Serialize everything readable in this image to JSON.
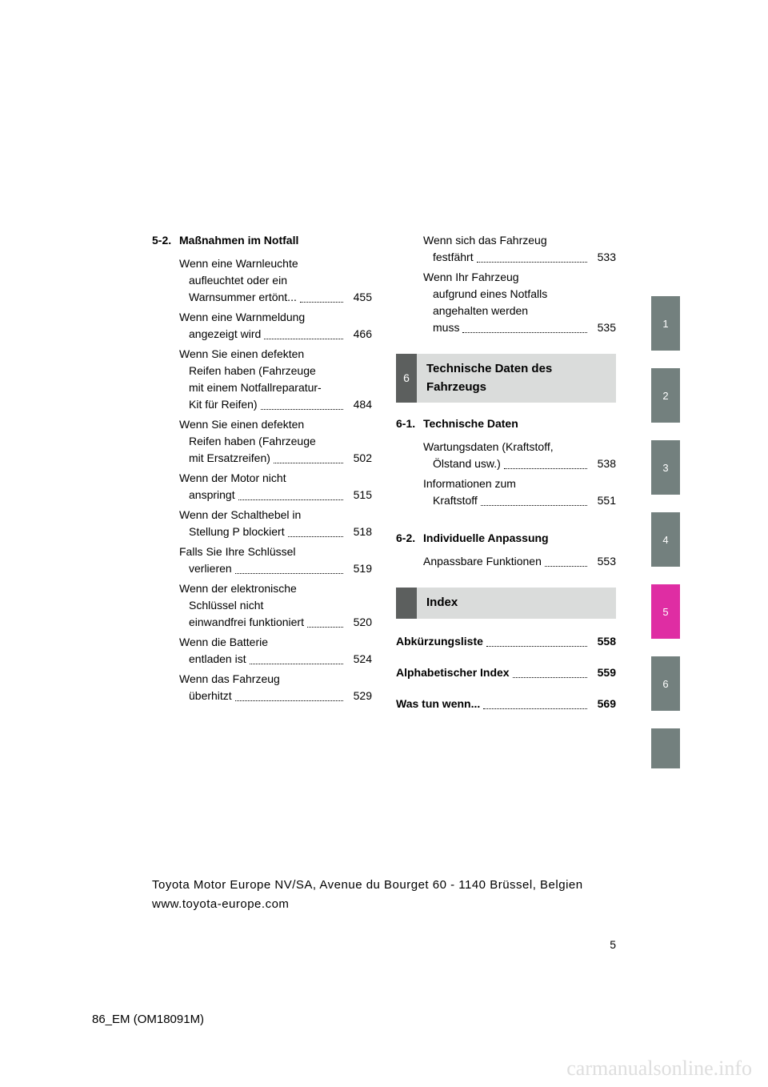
{
  "leftColumn": {
    "sectionNum": "5-2.",
    "sectionTitle": "Maßnahmen im Notfall",
    "entries": [
      {
        "lines": [
          "Wenn eine Warnleuchte",
          "aufleuchtet oder ein"
        ],
        "lastLine": "Warnsummer ertönt...",
        "page": "455"
      },
      {
        "lines": [
          "Wenn eine Warnmeldung"
        ],
        "lastLine": "angezeigt wird",
        "page": "466"
      },
      {
        "lines": [
          "Wenn Sie einen defekten",
          "Reifen haben (Fahrzeuge",
          "mit einem Notfallreparatur-"
        ],
        "lastLine": "Kit für Reifen)",
        "page": "484"
      },
      {
        "lines": [
          "Wenn Sie einen defekten",
          "Reifen haben (Fahrzeuge"
        ],
        "lastLine": "mit Ersatzreifen)",
        "page": "502"
      },
      {
        "lines": [
          "Wenn der Motor nicht"
        ],
        "lastLine": "anspringt",
        "page": "515"
      },
      {
        "lines": [
          "Wenn der Schalthebel in"
        ],
        "lastLine": "Stellung P blockiert",
        "page": "518"
      },
      {
        "lines": [
          "Falls Sie Ihre Schlüssel"
        ],
        "lastLine": "verlieren",
        "page": "519"
      },
      {
        "lines": [
          "Wenn der elektronische",
          "Schlüssel nicht"
        ],
        "lastLine": "einwandfrei funktioniert",
        "page": "520"
      },
      {
        "lines": [
          "Wenn die Batterie"
        ],
        "lastLine": "entladen ist",
        "page": "524"
      },
      {
        "lines": [
          "Wenn das Fahrzeug"
        ],
        "lastLine": "überhitzt",
        "page": "529"
      }
    ]
  },
  "rightColumn": {
    "topEntries": [
      {
        "lines": [
          "Wenn sich das Fahrzeug"
        ],
        "lastLine": "festfährt",
        "page": "533"
      },
      {
        "lines": [
          "Wenn Ihr Fahrzeug",
          "aufgrund eines Notfalls",
          "angehalten werden"
        ],
        "lastLine": "muss",
        "page": "535"
      }
    ],
    "section6": {
      "num": "6",
      "title": "Technische Daten des Fahrzeugs"
    },
    "sub61": {
      "num": "6-1.",
      "title": "Technische Daten",
      "entries": [
        {
          "lines": [
            "Wartungsdaten (Kraftstoff,"
          ],
          "lastLine": "Ölstand usw.)",
          "page": "538"
        },
        {
          "lines": [
            "Informationen zum"
          ],
          "lastLine": "Kraftstoff",
          "page": "551"
        }
      ]
    },
    "sub62": {
      "num": "6-2.",
      "title": "Individuelle Anpassung",
      "entries": [
        {
          "lines": [],
          "lastLine": "Anpassbare Funktionen",
          "page": "553"
        }
      ]
    },
    "indexTab": {
      "title": "Index"
    },
    "indexEntries": [
      {
        "text": "Abkürzungsliste",
        "page": "558"
      },
      {
        "text": "Alphabetischer Index",
        "page": "559"
      },
      {
        "text": "Was tun wenn...",
        "page": "569"
      }
    ]
  },
  "sideTabs": [
    {
      "num": "1",
      "color": "gray"
    },
    {
      "num": "2",
      "color": "gray"
    },
    {
      "num": "3",
      "color": "gray"
    },
    {
      "num": "4",
      "color": "gray"
    },
    {
      "num": "5",
      "color": "magenta"
    },
    {
      "num": "6",
      "color": "gray"
    },
    {
      "num": "",
      "color": "gray"
    }
  ],
  "footer": "Toyota Motor Europe NV/SA, Avenue du Bourget 60 - 1140 Brüssel, Belgien www.toyota-europe.com",
  "pageNumber": "5",
  "docId": "86_EM (OM18091M)",
  "watermark": "carmanualsonline.info",
  "colors": {
    "tabGray": "#73807e",
    "tabMagenta": "#df2da3",
    "sectionHeaderBg": "#dadcdb",
    "sectionHeaderNumBg": "#5c5f5e",
    "watermark": "#dedede"
  }
}
